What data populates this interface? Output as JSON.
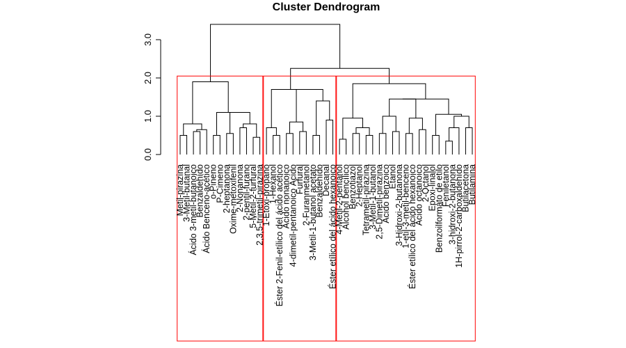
{
  "chart_data": {
    "type": "dendrogram",
    "title": "Cluster Dendrogram",
    "xlabel": "",
    "ylabel": "",
    "ylim": [
      0,
      3.5
    ],
    "yticks": [
      0.0,
      1.0,
      2.0,
      3.0
    ],
    "ytick_labels": [
      "0.0",
      "1.0",
      "2.0",
      "3.0"
    ],
    "leaves": [
      "Metil-pirazina",
      "3-Metil-butanal",
      "Ácido 3-metil-butanoico",
      "Benzaldehído",
      "Ácido Benceno-acético",
      "o-Pineno",
      "P-Cimeno",
      "2-heptanona",
      "Oxime-metoxifenil",
      "2-Nonanona",
      "2-pentil-furano",
      "5-Metil-2-furfural",
      "2,3,5-trimetil-pirazina",
      "1-Etoxi-propano",
      "1-Hexanol",
      "Éster 2-Fenil-etílico del ácido acético",
      "Ácido nonanoico",
      "4-dimetil-pentanoico Ácido",
      "Furfural",
      "2-Furanmetanol",
      "3-Metil-1-butanol acetato",
      "Benzaldehído",
      "Decanal",
      "Éster etílico del ácido hexanoico",
      "4-Metil-2-pentanol",
      "Alcohol bencílico",
      "Benzotiazol",
      "2-Heptanol",
      "Tetrametil-pirazina",
      "3-Metil-1-butanol",
      "2,5-Dimetil-pirazina",
      "Ácido benzoico",
      "Etanol",
      "3-Hidroxi-2-butanona",
      "1-etil-3-metil-benceno",
      "Éster etílico del ácido hexanoico",
      "Ácido octanoico",
      "2-Octanol",
      "Epoxi-linalol",
      "Benzoilformato de etilo",
      "Feniletanol",
      "3-hidroxi-2-butanona",
      "1H-pirrol-2-carboxaldehído",
      "Butilacetona",
      "Butilamina"
    ],
    "merges": [
      {
        "left": "L0",
        "right": "L1",
        "height": 0.5
      },
      {
        "left": "L2",
        "right": "L3",
        "height": 0.6
      },
      {
        "left": "L4",
        "right": "M1",
        "height": 0.65
      },
      {
        "left": "M0",
        "right": "M2",
        "height": 0.8
      },
      {
        "left": "L5",
        "right": "L6",
        "height": 0.5
      },
      {
        "left": "L7",
        "right": "L8",
        "height": 0.55
      },
      {
        "left": "L9",
        "right": "L10",
        "height": 0.7
      },
      {
        "left": "L11",
        "right": "L12",
        "height": 0.45
      },
      {
        "left": "M6",
        "right": "M7",
        "height": 0.8
      },
      {
        "left": "M5",
        "right": "M8",
        "height": 1.1
      },
      {
        "left": "M4",
        "right": "M9",
        "height": 1.1
      },
      {
        "left": "M3",
        "right": "M10",
        "height": 1.9
      },
      {
        "left": "L14",
        "right": "L15",
        "height": 0.5
      },
      {
        "left": "L13",
        "right": "M12",
        "height": 0.7
      },
      {
        "left": "L16",
        "right": "L17",
        "height": 0.55
      },
      {
        "left": "L18",
        "right": "L19",
        "height": 0.6
      },
      {
        "left": "M14",
        "right": "M15",
        "height": 0.85
      },
      {
        "left": "L20",
        "right": "L21",
        "height": 0.5
      },
      {
        "left": "L22",
        "right": "L23",
        "height": 0.9
      },
      {
        "left": "M17",
        "right": "M18",
        "height": 1.4
      },
      {
        "left": "M16",
        "right": "M19",
        "height": 1.7
      },
      {
        "left": "M13",
        "right": "M20",
        "height": 1.7
      },
      {
        "left": "L24",
        "right": "L25",
        "height": 0.4
      },
      {
        "left": "L26",
        "right": "L27",
        "height": 0.55
      },
      {
        "left": "L28",
        "right": "L29",
        "height": 0.5
      },
      {
        "left": "M23",
        "right": "M24",
        "height": 0.7
      },
      {
        "left": "M22",
        "right": "M25",
        "height": 0.95
      },
      {
        "left": "L30",
        "right": "L31",
        "height": 0.55
      },
      {
        "left": "L32",
        "right": "L33",
        "height": 0.6
      },
      {
        "left": "M27",
        "right": "M28",
        "height": 1.0
      },
      {
        "left": "L34",
        "right": "L35",
        "height": 0.55
      },
      {
        "left": "L36",
        "right": "L37",
        "height": 0.65
      },
      {
        "left": "M30",
        "right": "M31",
        "height": 0.95
      },
      {
        "left": "M29",
        "right": "M32",
        "height": 1.45
      },
      {
        "left": "L38",
        "right": "L39",
        "height": 0.5
      },
      {
        "left": "L40",
        "right": "L41",
        "height": 0.35
      },
      {
        "left": "L42",
        "right": "M35",
        "height": 0.7
      },
      {
        "left": "L43",
        "right": "L44",
        "height": 0.7
      },
      {
        "left": "M36",
        "right": "M37",
        "height": 1.0
      },
      {
        "left": "M34",
        "right": "M38",
        "height": 1.05
      },
      {
        "left": "M33",
        "right": "M39",
        "height": 1.45
      },
      {
        "left": "M26",
        "right": "M40",
        "height": 1.85
      },
      {
        "left": "M21",
        "right": "M41",
        "height": 2.25
      },
      {
        "left": "M11",
        "right": "M42",
        "height": 3.4
      }
    ],
    "clusters": [
      {
        "from": 0,
        "to": 12,
        "cut_height": 2.05
      },
      {
        "from": 13,
        "to": 23,
        "cut_height": 2.05
      },
      {
        "from": 24,
        "to": 44,
        "cut_height": 2.05
      }
    ]
  }
}
